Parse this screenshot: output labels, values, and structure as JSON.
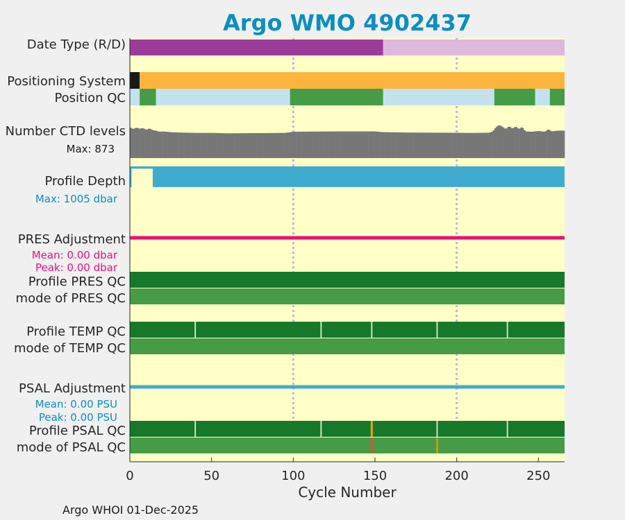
{
  "chart_data": {
    "type": "bar",
    "title": "Argo WMO 4902437",
    "xlabel": "Cycle Number",
    "xlim": [
      0,
      266
    ],
    "xticks": [
      0,
      50,
      100,
      150,
      200,
      250
    ],
    "grid_x": [
      100,
      200
    ],
    "footer": "Argo WHOI 01-Dec-2025",
    "colors": {
      "background": "#ffffc7",
      "figure": "#f0f0f0",
      "title": "#0b8fbf",
      "realtime": "#9b3c9b",
      "delayed": "#dcb8dc",
      "gps": "#fdb43f",
      "argos": "#1a1a1a",
      "qc_good": "#17782b",
      "qc_mode": "#469c46",
      "qc_light": "#c3e2ee",
      "ctd": "#777777",
      "depth": "#3faccf",
      "pres_adj": "#ec0f7d",
      "psal_adj": "#3faccf",
      "bad_orange": "#f0a000",
      "bad_red": "#e05030"
    },
    "rows": {
      "date_type": {
        "label": "Date Type (R/D)",
        "segments": [
          {
            "from": 0,
            "to": 155,
            "value": "R"
          },
          {
            "from": 155,
            "to": 266,
            "value": "D"
          }
        ]
      },
      "positioning": {
        "label": "Positioning System",
        "segments": [
          {
            "from": 0,
            "to": 6,
            "value": "ARGOS"
          },
          {
            "from": 6,
            "to": 266,
            "value": "GPS"
          }
        ]
      },
      "position_qc": {
        "label": "Position QC",
        "segments": [
          {
            "from": 0,
            "to": 6,
            "value": "light"
          },
          {
            "from": 6,
            "to": 16,
            "value": "good"
          },
          {
            "from": 16,
            "to": 98,
            "value": "light"
          },
          {
            "from": 98,
            "to": 155,
            "value": "good"
          },
          {
            "from": 155,
            "to": 223,
            "value": "light"
          },
          {
            "from": 223,
            "to": 248,
            "value": "good"
          },
          {
            "from": 248,
            "to": 257,
            "value": "light"
          },
          {
            "from": 257,
            "to": 266,
            "value": "good"
          }
        ]
      },
      "ctd_levels": {
        "label": "Number CTD levels",
        "max_label": "Max: 873",
        "max": 873,
        "baseline": 630,
        "anchors": [
          [
            0,
            810
          ],
          [
            2,
            760
          ],
          [
            4,
            800
          ],
          [
            6,
            770
          ],
          [
            8,
            790
          ],
          [
            10,
            740
          ],
          [
            12,
            780
          ],
          [
            14,
            730
          ],
          [
            16,
            720
          ],
          [
            18,
            690
          ],
          [
            20,
            700
          ],
          [
            25,
            680
          ],
          [
            30,
            670
          ],
          [
            40,
            660
          ],
          [
            50,
            660
          ],
          [
            60,
            650
          ],
          [
            80,
            655
          ],
          [
            95,
            660
          ],
          [
            100,
            690
          ],
          [
            110,
            695
          ],
          [
            130,
            700
          ],
          [
            150,
            700
          ],
          [
            155,
            680
          ],
          [
            170,
            670
          ],
          [
            190,
            665
          ],
          [
            210,
            660
          ],
          [
            220,
            665
          ],
          [
            222,
            700
          ],
          [
            224,
            810
          ],
          [
            226,
            870
          ],
          [
            228,
            820
          ],
          [
            230,
            760
          ],
          [
            232,
            840
          ],
          [
            234,
            770
          ],
          [
            236,
            830
          ],
          [
            238,
            760
          ],
          [
            240,
            820
          ],
          [
            242,
            700
          ],
          [
            246,
            690
          ],
          [
            250,
            710
          ],
          [
            254,
            690
          ],
          [
            256,
            760
          ],
          [
            258,
            700
          ],
          [
            262,
            720
          ],
          [
            266,
            720
          ]
        ]
      },
      "profile_depth": {
        "label": "Profile Depth",
        "max_label": "Max: 1005 dbar",
        "max": 1005,
        "deep": 1000,
        "shallow_cycles": [
          {
            "from": 1,
            "to": 14,
            "depth": 110
          }
        ]
      },
      "pres_adj": {
        "label": "PRES Adjustment",
        "mean_label": "Mean: 0.00 dbar",
        "peak_label": "Peak: 0.00 dbar",
        "value": 0.0
      },
      "pres_qc": {
        "label": "Profile PRES QC",
        "mode_label": "mode of PRES QC",
        "profile_breaks": [],
        "mode_breaks": []
      },
      "temp_qc": {
        "label": "Profile TEMP QC",
        "mode_label": "mode of TEMP QC",
        "profile_breaks": [
          40,
          117,
          148,
          188,
          231
        ],
        "mode_breaks": []
      },
      "psal_adj": {
        "label": "PSAL Adjustment",
        "mean_label": "Mean: 0.00 PSU",
        "peak_label": "Peak: 0.00 PSU",
        "value": 0.0
      },
      "psal_qc": {
        "label": "Profile PSAL QC",
        "mode_label": "mode of PSAL QC",
        "profile_breaks": [
          40,
          117,
          188,
          231
        ],
        "profile_bad": [
          148
        ],
        "mode_bad_red": [
          148
        ],
        "mode_bad_orange": [
          188
        ]
      }
    }
  }
}
